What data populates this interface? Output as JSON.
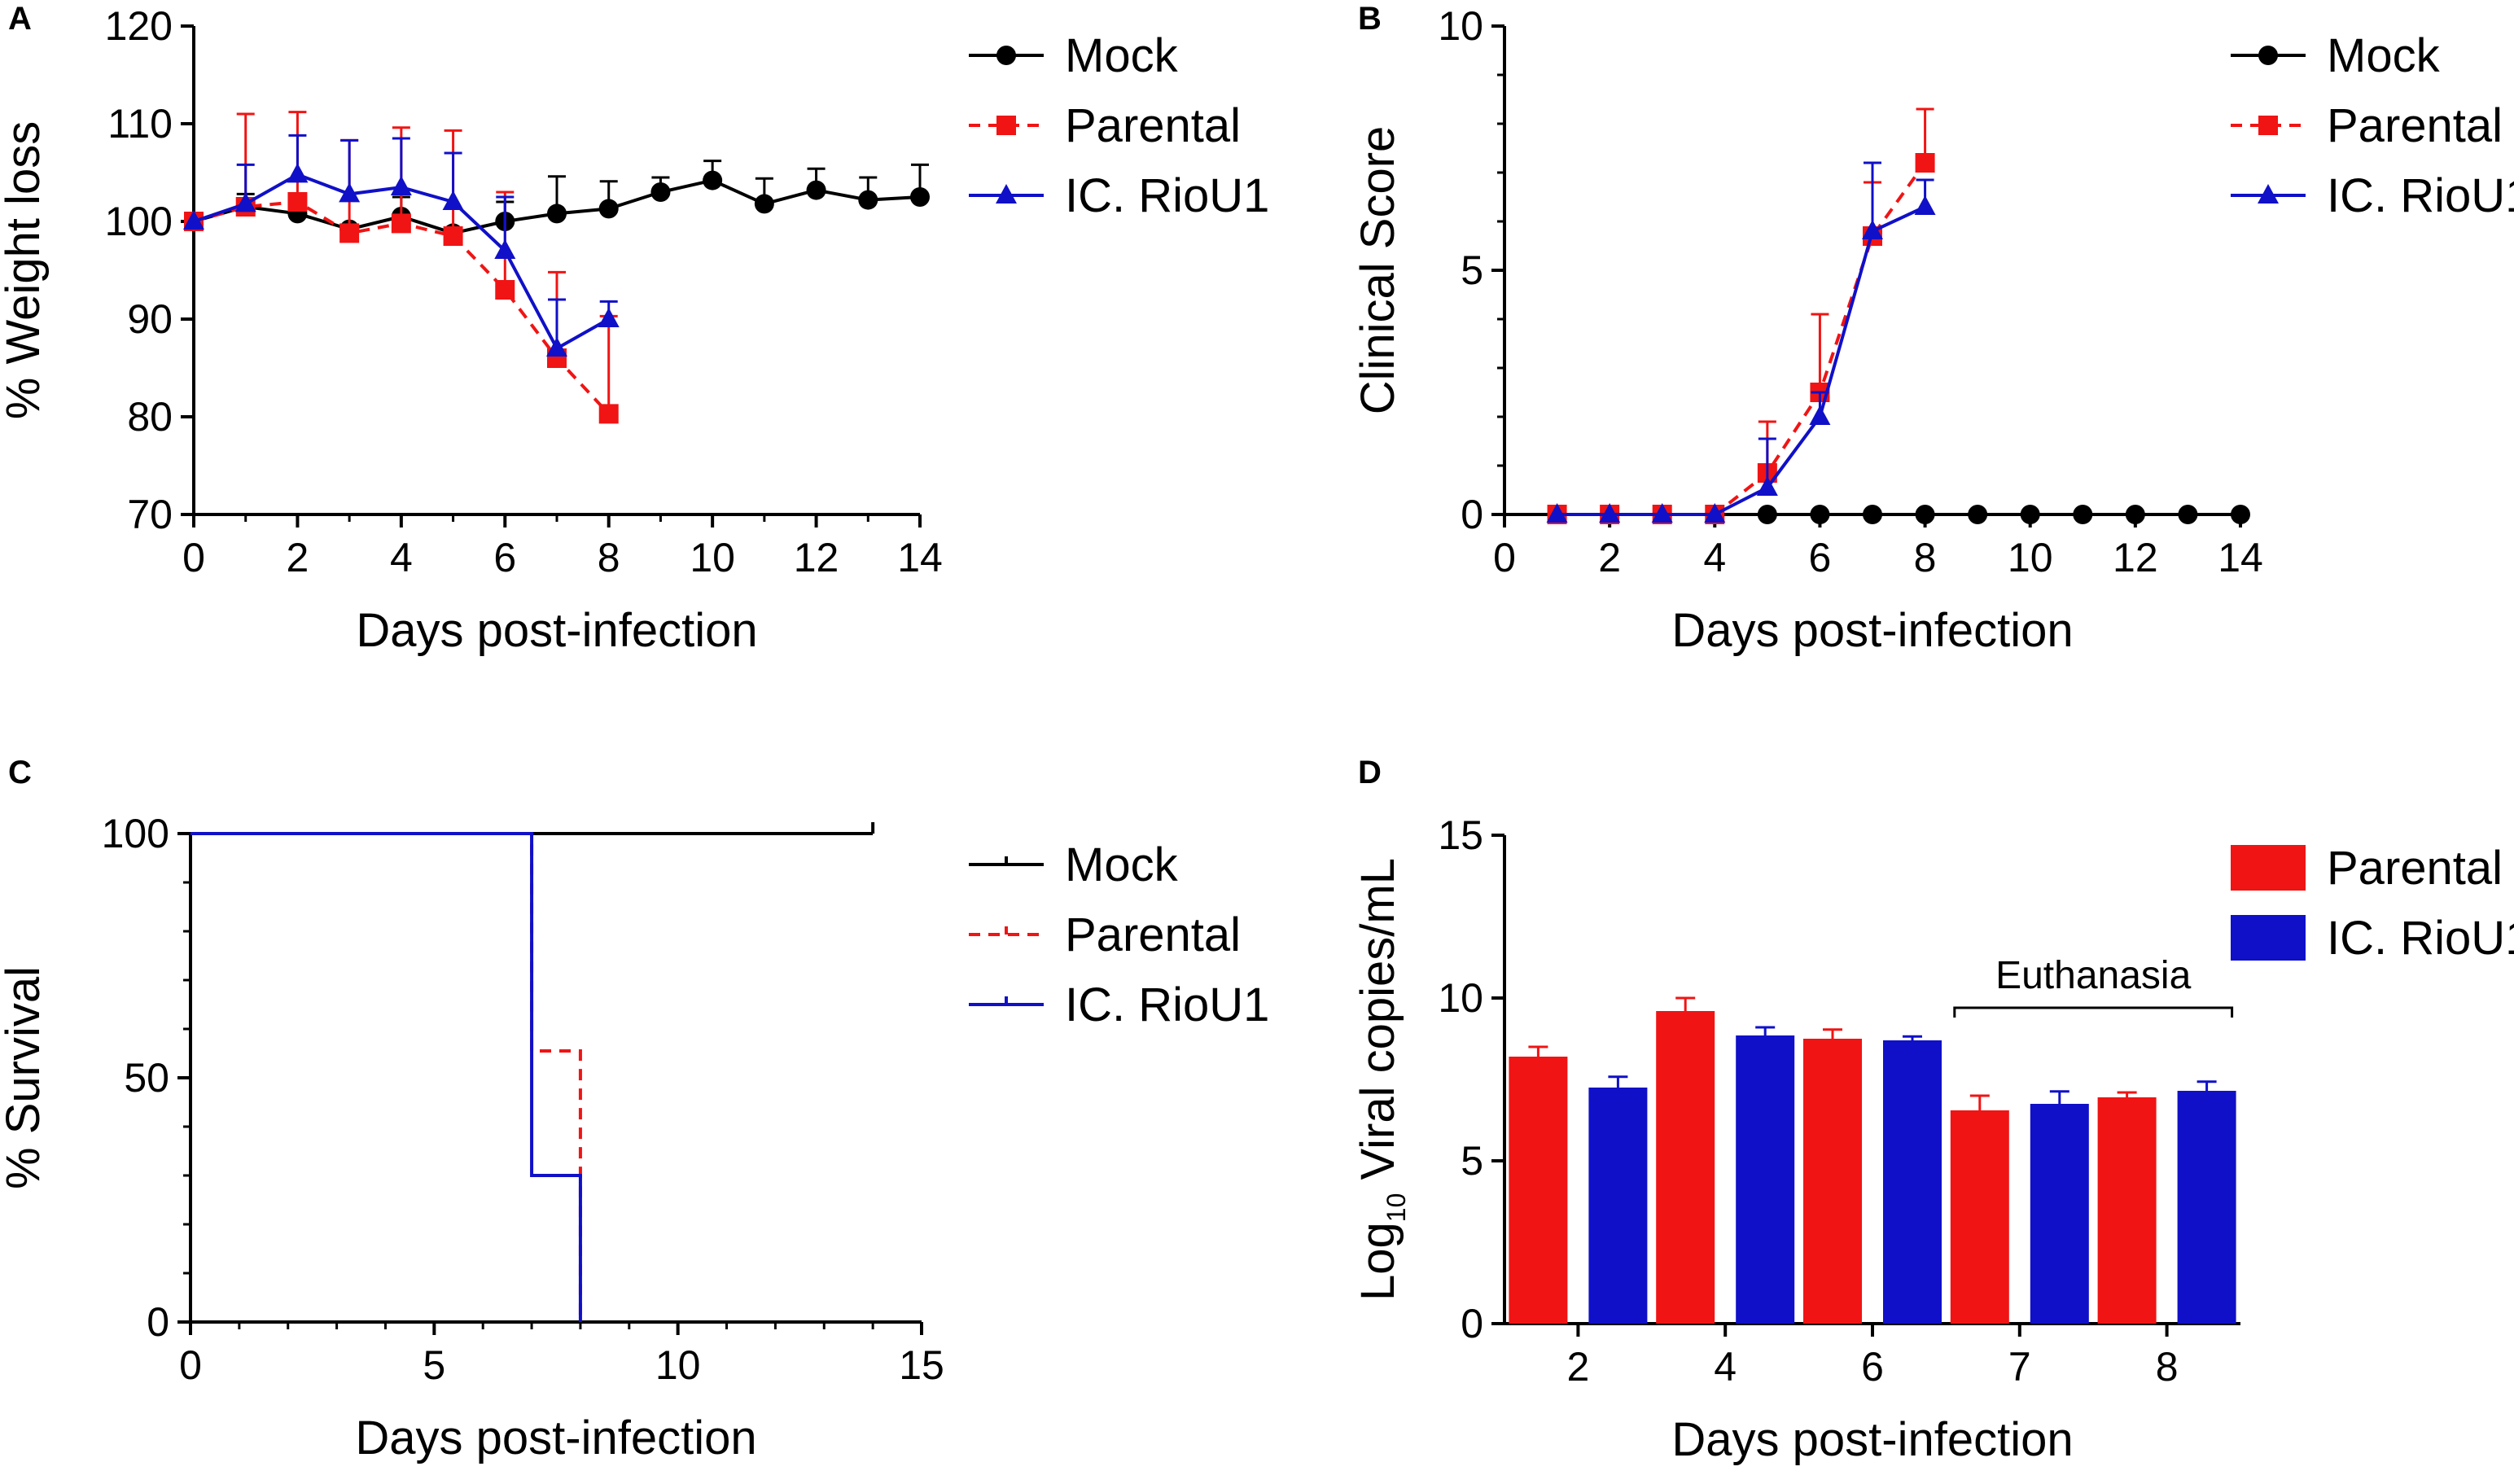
{
  "figure": {
    "colors": {
      "mock": "#000000",
      "parental": "#f01414",
      "ic": "#1010c8",
      "axis": "#000000"
    }
  },
  "chart_data": [
    {
      "id": "A",
      "panel_label": "A",
      "type": "line",
      "xlabel": "Days post-infection",
      "ylabel": "% Weight loss",
      "xlim": [
        0,
        14
      ],
      "ylim": [
        70,
        120
      ],
      "xticks": [
        0,
        2,
        4,
        6,
        8,
        10,
        12,
        14
      ],
      "yticks": [
        70,
        80,
        90,
        100,
        110,
        120
      ],
      "series": [
        {
          "name": "Mock",
          "marker": "circle",
          "color": "#000000",
          "dashed": false,
          "x": [
            0,
            1,
            2,
            3,
            4,
            5,
            6,
            7,
            8,
            9,
            10,
            11,
            12,
            13,
            14
          ],
          "y": [
            100,
            101.5,
            100.8,
            99.2,
            100.5,
            98.8,
            100,
            100.8,
            101.3,
            103,
            104.2,
            101.8,
            103.2,
            102.2,
            102.5
          ],
          "err": [
            0,
            1.3,
            0,
            0,
            2,
            0,
            2,
            3.8,
            2.8,
            1.5,
            2,
            2.6,
            2.2,
            2.3,
            3.3
          ]
        },
        {
          "name": "Parental",
          "marker": "square",
          "color": "#f01414",
          "dashed": true,
          "x": [
            0,
            1,
            2,
            3,
            4,
            5,
            6,
            7,
            8
          ],
          "y": [
            100,
            101.5,
            102,
            98.8,
            99.8,
            98.5,
            93,
            86,
            80.3
          ],
          "err": [
            0,
            9.5,
            9.2,
            9.5,
            9.8,
            10.8,
            10,
            8.8,
            10
          ]
        },
        {
          "name": "IC. RioU1",
          "marker": "triangle",
          "color": "#1010c8",
          "dashed": false,
          "x": [
            0,
            1,
            2,
            3,
            4,
            5,
            6,
            7,
            8
          ],
          "y": [
            100,
            101.8,
            104.8,
            102.8,
            103.5,
            102,
            97,
            87,
            90
          ],
          "err": [
            0,
            4,
            4,
            5.5,
            5,
            5,
            5.5,
            5,
            1.8
          ]
        }
      ]
    },
    {
      "id": "B",
      "panel_label": "B",
      "type": "line",
      "xlabel": "Days post-infection",
      "ylabel": "Clinical Score",
      "xlim": [
        0,
        14
      ],
      "ylim": [
        0,
        10
      ],
      "xticks": [
        0,
        2,
        4,
        6,
        8,
        10,
        12,
        14
      ],
      "yticks": [
        0,
        5,
        10
      ],
      "series": [
        {
          "name": "Mock",
          "marker": "circle",
          "color": "#000000",
          "dashed": false,
          "x": [
            1,
            2,
            3,
            4,
            5,
            6,
            7,
            8,
            9,
            10,
            11,
            12,
            13,
            14
          ],
          "y": [
            0,
            0,
            0,
            0,
            0,
            0,
            0,
            0,
            0,
            0,
            0,
            0,
            0,
            0
          ],
          "err": [
            0,
            0,
            0,
            0,
            0,
            0,
            0,
            0,
            0,
            0,
            0,
            0,
            0,
            0
          ]
        },
        {
          "name": "Parental",
          "marker": "square",
          "color": "#f01414",
          "dashed": true,
          "x": [
            1,
            2,
            3,
            4,
            5,
            6,
            7,
            8
          ],
          "y": [
            0,
            0,
            0,
            0,
            0.85,
            2.5,
            5.7,
            7.2
          ],
          "err": [
            0,
            0,
            0,
            0,
            1.05,
            1.6,
            1.1,
            1.1
          ]
        },
        {
          "name": "IC. RioU1",
          "marker": "triangle",
          "color": "#1010c8",
          "dashed": false,
          "x": [
            1,
            2,
            3,
            4,
            5,
            6,
            7,
            8
          ],
          "y": [
            0,
            0,
            0,
            0,
            0.55,
            2,
            5.8,
            6.3
          ],
          "err": [
            0,
            0,
            0,
            0,
            1,
            0.5,
            1.4,
            0.55
          ]
        }
      ]
    },
    {
      "id": "C",
      "panel_label": "C",
      "type": "line",
      "subtype": "survival-step",
      "xlabel": "Days post-infection",
      "ylabel": "% Survival",
      "xlim": [
        0,
        15
      ],
      "ylim": [
        0,
        100
      ],
      "xticks": [
        0,
        5,
        10,
        15
      ],
      "yticks": [
        0,
        50,
        100
      ],
      "series": [
        {
          "name": "Mock",
          "color": "#000000",
          "dashed": false,
          "x": [
            0,
            14
          ],
          "y": [
            100,
            100
          ]
        },
        {
          "name": "Parental",
          "color": "#f01414",
          "dashed": true,
          "x": [
            0,
            7,
            8
          ],
          "y": [
            100,
            55.5,
            0
          ]
        },
        {
          "name": "IC. RioU1",
          "color": "#1010c8",
          "dashed": false,
          "x": [
            0,
            7,
            8
          ],
          "y": [
            100,
            30,
            0
          ]
        }
      ]
    },
    {
      "id": "D",
      "panel_label": "D",
      "type": "bar",
      "xlabel": "Days post-infection",
      "ylabel_main": "Log",
      "ylabel_sub": "10",
      "ylabel_rest": " Viral copies/mL",
      "ylim": [
        0,
        15
      ],
      "yticks": [
        0,
        5,
        10,
        15
      ],
      "categories": [
        "2",
        "4",
        "6",
        "7",
        "8"
      ],
      "series": [
        {
          "name": "Parental",
          "color": "#f01414",
          "values": [
            8.2,
            9.6,
            8.75,
            6.55,
            6.95
          ],
          "err": [
            0.3,
            0.4,
            0.28,
            0.45,
            0.15
          ]
        },
        {
          "name": "IC. RioU1",
          "color": "#1010c8",
          "values": [
            7.25,
            8.85,
            8.7,
            6.75,
            7.15
          ],
          "err": [
            0.33,
            0.25,
            0.12,
            0.38,
            0.28
          ]
        }
      ],
      "annotation": {
        "text": "Euthanasia",
        "from_category": "7",
        "to_category": "8"
      }
    }
  ]
}
